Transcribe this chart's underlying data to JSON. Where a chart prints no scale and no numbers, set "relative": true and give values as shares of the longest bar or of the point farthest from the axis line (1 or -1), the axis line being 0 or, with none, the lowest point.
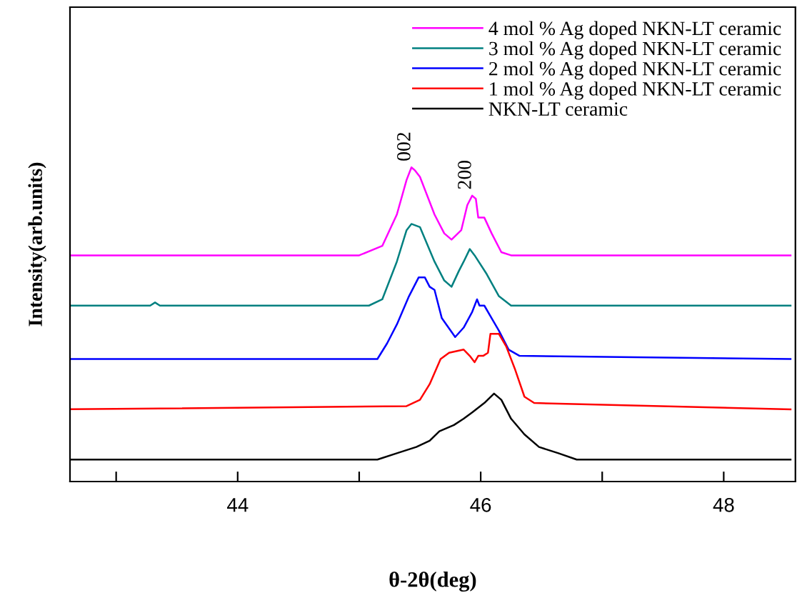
{
  "chart_data": {
    "type": "line",
    "relative": true,
    "xlabel": "θ-2θ(deg)",
    "ylabel": "Intensity(arb.units)",
    "xlim": [
      42.62,
      48.59
    ],
    "xticks": [
      {
        "value": 43,
        "label": null
      },
      44,
      {
        "value": 45,
        "label": null
      },
      46,
      {
        "value": 47,
        "label": null
      },
      48
    ],
    "legend": "top right",
    "grid": false,
    "tick_labels": "x",
    "annotations": [
      {
        "text": "002",
        "x": 45.43,
        "y": 1.0
      },
      {
        "text": "200",
        "x": 45.93,
        "y": 0.91
      }
    ],
    "series": [
      {
        "name": "4 mol % Ag doped NKN-LT ceramic",
        "color": "#ff00ff",
        "x": [
          42.62,
          45.0,
          45.19,
          45.31,
          45.39,
          45.43,
          45.46,
          45.5,
          45.62,
          45.7,
          45.76,
          45.84,
          45.89,
          45.93,
          45.96,
          45.98,
          46.03,
          46.09,
          46.17,
          46.25,
          48.55
        ],
        "values": [
          0.72,
          0.72,
          0.75,
          0.85,
          0.96,
          1.0,
          0.99,
          0.97,
          0.85,
          0.79,
          0.77,
          0.8,
          0.88,
          0.91,
          0.9,
          0.84,
          0.84,
          0.79,
          0.73,
          0.72,
          0.72
        ]
      },
      {
        "name": "3 mol % Ag doped NKN-LT ceramic",
        "color": "#008080",
        "x": [
          42.62,
          43.28,
          43.32,
          43.36,
          45.08,
          45.19,
          45.31,
          45.39,
          45.43,
          45.5,
          45.62,
          45.7,
          45.76,
          45.82,
          45.86,
          45.91,
          45.95,
          46.05,
          46.15,
          46.25,
          48.55
        ],
        "values": [
          0.56,
          0.56,
          0.57,
          0.56,
          0.56,
          0.58,
          0.7,
          0.8,
          0.82,
          0.81,
          0.7,
          0.64,
          0.62,
          0.67,
          0.7,
          0.74,
          0.72,
          0.66,
          0.59,
          0.56,
          0.56
        ]
      },
      {
        "name": "2 mol % Ag doped NKN-LT ceramic",
        "color": "#0000ff",
        "x": [
          42.62,
          45.15,
          45.23,
          45.31,
          45.41,
          45.49,
          45.54,
          45.58,
          45.62,
          45.68,
          45.79,
          45.86,
          45.93,
          45.97,
          45.99,
          46.03,
          46.09,
          46.15,
          46.23,
          46.32,
          48.55
        ],
        "values": [
          0.39,
          0.39,
          0.44,
          0.5,
          0.59,
          0.65,
          0.65,
          0.62,
          0.61,
          0.52,
          0.46,
          0.49,
          0.54,
          0.58,
          0.56,
          0.56,
          0.52,
          0.48,
          0.42,
          0.4,
          0.39
        ]
      },
      {
        "name": "1 mol % Ag doped NKN-LT ceramic",
        "color": "#ff0000",
        "x": [
          42.62,
          45.39,
          45.5,
          45.58,
          45.67,
          45.74,
          45.86,
          45.91,
          45.95,
          45.98,
          46.02,
          46.06,
          46.08,
          46.15,
          46.21,
          46.28,
          46.36,
          46.44,
          48.55
        ],
        "values": [
          0.23,
          0.24,
          0.26,
          0.31,
          0.39,
          0.41,
          0.42,
          0.4,
          0.38,
          0.4,
          0.4,
          0.41,
          0.47,
          0.47,
          0.43,
          0.36,
          0.27,
          0.25,
          0.23
        ]
      },
      {
        "name": "NKN-LT ceramic",
        "color": "#000000",
        "x": [
          42.62,
          45.15,
          45.31,
          45.47,
          45.58,
          45.66,
          45.78,
          45.86,
          45.93,
          46.03,
          46.11,
          46.17,
          46.25,
          46.36,
          46.48,
          46.64,
          46.79,
          48.55
        ],
        "values": [
          0.07,
          0.07,
          0.09,
          0.11,
          0.13,
          0.16,
          0.18,
          0.2,
          0.22,
          0.25,
          0.28,
          0.26,
          0.2,
          0.15,
          0.11,
          0.09,
          0.07,
          0.07
        ]
      }
    ]
  }
}
